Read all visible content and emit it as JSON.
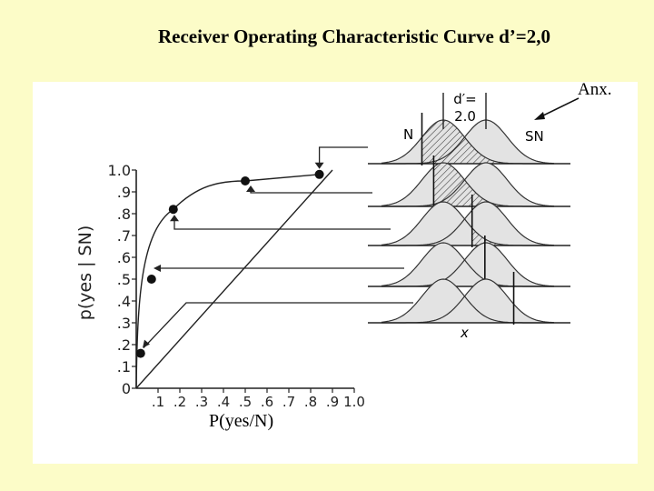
{
  "title": "Receiver Operating Characteristic Curve d’=2,0",
  "annotation": "Anx.",
  "chart_data": {
    "type": "line",
    "xlabel": "P(yes/N)",
    "ylabel": "p(yes | SN)",
    "xlim": [
      0,
      1.0
    ],
    "ylim": [
      0,
      1.0
    ],
    "x_ticks": [
      "0",
      ".1",
      ".2",
      ".3",
      ".4",
      ".5",
      ".6",
      ".7",
      ".8",
      ".9",
      "1.0"
    ],
    "y_ticks": [
      "0",
      ".1",
      ".2",
      ".3",
      ".4",
      ".5",
      ".6",
      ".7",
      ".8",
      ".9",
      "1.0"
    ],
    "series": [
      {
        "points": [
          {
            "x": 0.02,
            "y": 0.16
          },
          {
            "x": 0.07,
            "y": 0.5
          },
          {
            "x": 0.17,
            "y": 0.82
          },
          {
            "x": 0.5,
            "y": 0.95
          },
          {
            "x": 0.84,
            "y": 0.98
          }
        ]
      }
    ],
    "chance_line": [
      [
        0,
        0
      ],
      [
        0.9,
        1.0
      ]
    ],
    "distributions": {
      "dprime_label": [
        "d′=",
        "2.0"
      ],
      "noise_label": "N",
      "signal_label": "SN",
      "x_label": "x",
      "criterion_positions": [
        -1.0,
        -0.45,
        1.35,
        1.95,
        3.3
      ]
    }
  }
}
